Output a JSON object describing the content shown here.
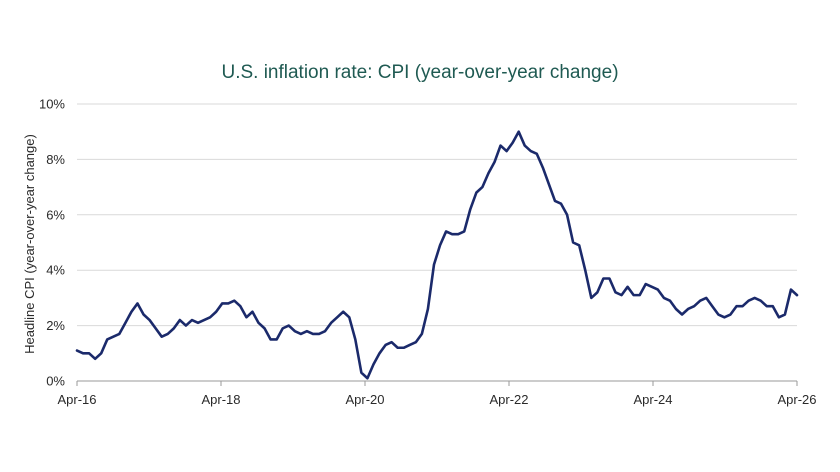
{
  "chart_data": {
    "type": "line",
    "title": "U.S. inflation rate: CPI (year-over-year change)",
    "ylabel": "Headline CPI (year-over-year change)",
    "xlabel": "",
    "ylim": [
      0,
      10
    ],
    "yticks": [
      "0%",
      "2%",
      "4%",
      "6%",
      "8%",
      "10%"
    ],
    "xticks": [
      "Apr-16",
      "Apr-18",
      "Apr-20",
      "Apr-22",
      "Apr-24",
      "Apr-26"
    ],
    "grid": "horizontal",
    "x_start": "Apr-16",
    "x_end": "Apr-26",
    "colors": {
      "line": "#1b2a6b",
      "grid": "#d9d9d9",
      "title": "#1f5a52"
    },
    "series": [
      {
        "values": [
          1.1,
          1.0,
          1.0,
          0.8,
          1.0,
          1.5,
          1.6,
          1.7,
          2.1,
          2.5,
          2.8,
          2.4,
          2.2,
          1.9,
          1.6,
          1.7,
          1.9,
          2.2,
          2.0,
          2.2,
          2.1,
          2.2,
          2.3,
          2.5,
          2.8,
          2.8,
          2.9,
          2.7,
          2.3,
          2.5,
          2.1,
          1.9,
          1.5,
          1.5,
          1.9,
          2.0,
          1.8,
          1.7,
          1.8,
          1.7,
          1.7,
          1.8,
          2.1,
          2.3,
          2.5,
          2.3,
          1.5,
          0.3,
          0.1,
          0.6,
          1.0,
          1.3,
          1.4,
          1.2,
          1.2,
          1.3,
          1.4,
          1.7,
          2.6,
          4.2,
          4.9,
          5.4,
          5.3,
          5.3,
          5.4,
          6.2,
          6.8,
          7.0,
          7.5,
          7.9,
          8.5,
          8.3,
          8.6,
          9.0,
          8.5,
          8.3,
          8.2,
          7.7,
          7.1,
          6.5,
          6.4,
          6.0,
          5.0,
          4.9,
          4.0,
          3.0,
          3.2,
          3.7,
          3.7,
          3.2,
          3.1,
          3.4,
          3.1,
          3.1,
          3.5,
          3.4,
          3.3,
          3.0,
          2.9,
          2.6,
          2.4,
          2.6,
          2.7,
          2.9,
          3.0,
          2.7,
          2.4,
          2.3,
          2.4,
          2.7,
          2.7,
          2.9,
          3.0,
          2.9,
          2.7,
          2.7,
          2.3,
          2.4,
          3.3,
          3.1
        ]
      }
    ]
  }
}
